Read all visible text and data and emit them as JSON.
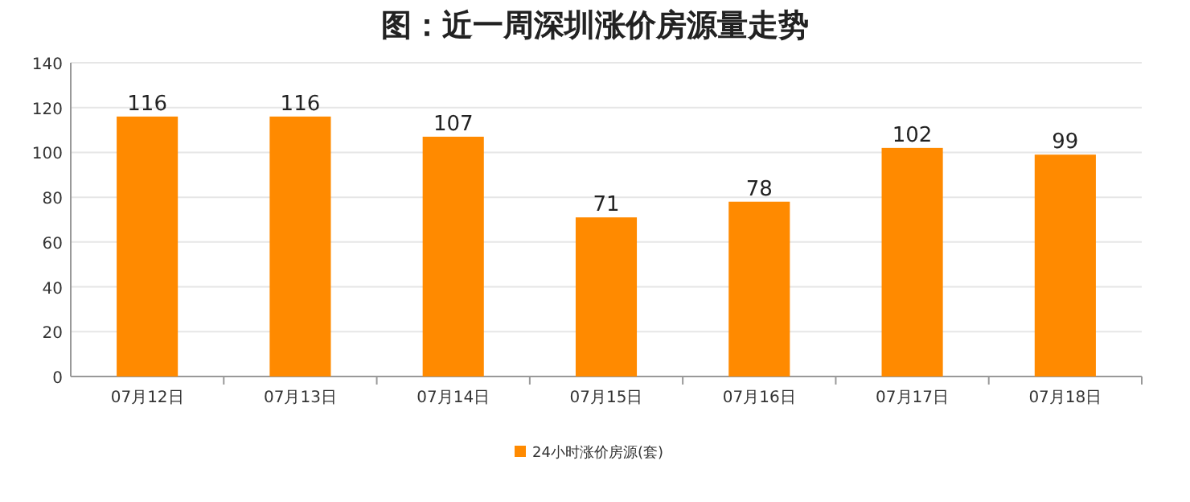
{
  "chart_data": {
    "type": "bar",
    "title": "图：近一周深圳涨价房源量走势",
    "categories": [
      "07月12日",
      "07月13日",
      "07月14日",
      "07月15日",
      "07月16日",
      "07月17日",
      "07月18日"
    ],
    "series": [
      {
        "name": "24小时涨价房源(套)",
        "color": "#ff8a00",
        "values": [
          116,
          116,
          107,
          71,
          78,
          102,
          99
        ]
      }
    ],
    "ylim": [
      0,
      140
    ],
    "yticks": [
      0,
      20,
      40,
      60,
      80,
      100,
      120,
      140
    ],
    "grid": "y",
    "legend": "bottom",
    "data_labels": true
  }
}
